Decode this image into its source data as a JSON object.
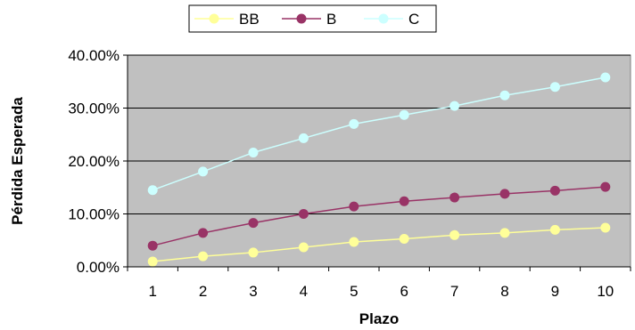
{
  "chart_data": {
    "type": "line",
    "title": "",
    "xlabel": "Plazo",
    "ylabel": "Pérdida Esperada",
    "x": [
      1,
      2,
      3,
      4,
      5,
      6,
      7,
      8,
      9,
      10
    ],
    "x_tick_labels": [
      "1",
      "2",
      "3",
      "4",
      "5",
      "6",
      "7",
      "8",
      "9",
      "10"
    ],
    "ylim": [
      0,
      40
    ],
    "y_ticks": [
      0,
      10,
      20,
      30,
      40
    ],
    "y_tick_labels": [
      "0.00%",
      "10.00%",
      "20.00%",
      "30.00%",
      "40.00%"
    ],
    "y_unit": "percent",
    "grid": "horizontal",
    "plot_background": "#c0c0c0",
    "legend_position": "top",
    "series": [
      {
        "name": "BB",
        "color": "#ffff99",
        "values": [
          1.0,
          2.0,
          2.7,
          3.7,
          4.7,
          5.3,
          6.0,
          6.4,
          7.0,
          7.4
        ]
      },
      {
        "name": "B",
        "color": "#993366",
        "values": [
          4.0,
          6.4,
          8.3,
          10.0,
          11.4,
          12.4,
          13.1,
          13.8,
          14.4,
          15.1
        ]
      },
      {
        "name": "C",
        "color": "#ccffff",
        "values": [
          14.5,
          18.0,
          21.6,
          24.3,
          27.0,
          28.7,
          30.4,
          32.4,
          34.0,
          35.8
        ]
      }
    ]
  }
}
